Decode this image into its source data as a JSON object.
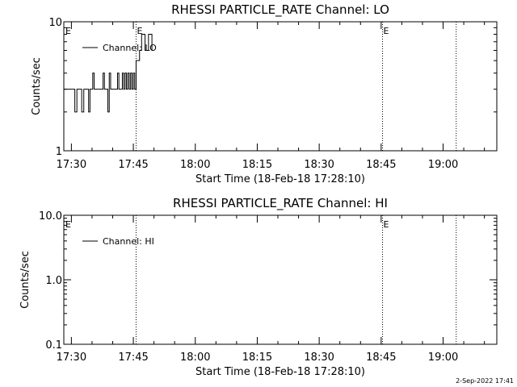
{
  "chart_data": [
    {
      "type": "line",
      "title": "RHESSI PARTICLE_RATE Channel: LO",
      "xlabel": "Start Time (18-Feb-18 17:28:10)",
      "ylabel": "Counts/sec",
      "y_scale": "log",
      "ylim": [
        1,
        10
      ],
      "yticks": [
        "1",
        "10"
      ],
      "xticks": [
        "17:30",
        "17:45",
        "18:00",
        "18:15",
        "18:30",
        "18:45",
        "19:00"
      ],
      "xlim": [
        "17:28:10",
        "19:13:00"
      ],
      "grid": false,
      "legend": {
        "placement": "top-left",
        "label": "Channel: LO"
      },
      "event_markers": [
        {
          "time": "17:45:40",
          "label": "E"
        },
        {
          "time": "18:45:20",
          "label": "E"
        },
        {
          "time": "19:03:10",
          "label": ""
        }
      ],
      "corner_label": "E",
      "series": [
        {
          "name": "Channel: LO",
          "x": [
            "17:28:10",
            "17:29:00",
            "17:29:40",
            "17:30:10",
            "17:30:30",
            "17:30:50",
            "17:31:20",
            "17:31:40",
            "17:32:00",
            "17:32:30",
            "17:33:00",
            "17:33:20",
            "17:33:40",
            "17:34:10",
            "17:34:30",
            "17:34:50",
            "17:35:10",
            "17:35:30",
            "17:36:00",
            "17:36:20",
            "17:36:50",
            "17:37:10",
            "17:37:40",
            "17:38:00",
            "17:38:30",
            "17:38:50",
            "17:39:10",
            "17:39:30",
            "17:40:00",
            "17:40:20",
            "17:40:50",
            "17:41:10",
            "17:41:30",
            "17:42:00",
            "17:42:20",
            "17:42:40",
            "17:43:00",
            "17:43:20",
            "17:43:40",
            "17:44:00",
            "17:44:20",
            "17:44:40",
            "17:45:00",
            "17:45:20",
            "17:45:40",
            "17:46:00",
            "17:46:30",
            "17:47:00",
            "17:47:20",
            "17:47:50",
            "17:48:10",
            "17:48:40",
            "17:49:00",
            "17:49:30",
            "17:49:50"
          ],
          "values": [
            3,
            3,
            3,
            3,
            3,
            2,
            3,
            3,
            3,
            2,
            3,
            3,
            3,
            2,
            3,
            3,
            4,
            3,
            3,
            3,
            3,
            3,
            4,
            3,
            3,
            2,
            4,
            3,
            3,
            3,
            3,
            4,
            3,
            3,
            4,
            3,
            4,
            3,
            4,
            3,
            4,
            3,
            4,
            3,
            5,
            5,
            6,
            8,
            8,
            6,
            6,
            8,
            8,
            6,
            6
          ]
        }
      ]
    },
    {
      "type": "line",
      "title": "RHESSI PARTICLE_RATE Channel: HI",
      "xlabel": "Start Time (18-Feb-18 17:28:10)",
      "ylabel": "Counts/sec",
      "y_scale": "log",
      "ylim": [
        0.1,
        10
      ],
      "yticks": [
        "0.1",
        "1.0",
        "10.0"
      ],
      "xticks": [
        "17:30",
        "17:45",
        "18:00",
        "18:15",
        "18:30",
        "18:45",
        "19:00"
      ],
      "xlim": [
        "17:28:10",
        "19:13:00"
      ],
      "grid": false,
      "legend": {
        "placement": "top-left",
        "label": "Channel: HI"
      },
      "event_markers": [
        {
          "time": "17:45:40",
          "label": ""
        },
        {
          "time": "18:45:20",
          "label": "E"
        },
        {
          "time": "19:03:10",
          "label": ""
        }
      ],
      "corner_label": "E",
      "series": [
        {
          "name": "Channel: HI",
          "x": [],
          "values": []
        }
      ]
    }
  ],
  "footer": {
    "timestamp": "2-Sep-2022 17:41"
  }
}
